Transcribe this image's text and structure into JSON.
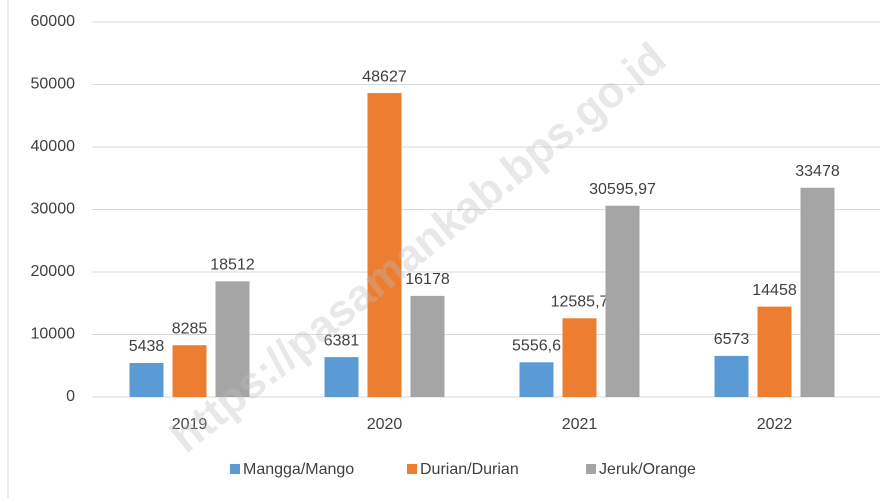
{
  "watermark": "https://pasamankab.bps.go.id",
  "chart_data": {
    "type": "bar",
    "categories": [
      "2019",
      "2020",
      "2021",
      "2022"
    ],
    "series": [
      {
        "name": "Mangga/Mango",
        "color": "#5b9bd5",
        "values": [
          5438,
          6381,
          5556.6,
          6573
        ],
        "value_labels": [
          "5438",
          "6381",
          "5556,6",
          "6573"
        ]
      },
      {
        "name": "Durian/Durian",
        "color": "#ed7d31",
        "values": [
          8285,
          48627,
          12585.7,
          14458
        ],
        "value_labels": [
          "8285",
          "48627",
          "12585,7",
          "14458"
        ]
      },
      {
        "name": "Jeruk/Orange",
        "color": "#a5a5a5",
        "values": [
          18512,
          16178,
          30595.97,
          33478
        ],
        "value_labels": [
          "18512",
          "16178",
          "30595,97",
          "33478"
        ]
      }
    ],
    "ylim": [
      0,
      60000
    ],
    "yticks": [
      0,
      10000,
      20000,
      30000,
      40000,
      50000,
      60000
    ],
    "grid": true,
    "legend": "bottom"
  }
}
